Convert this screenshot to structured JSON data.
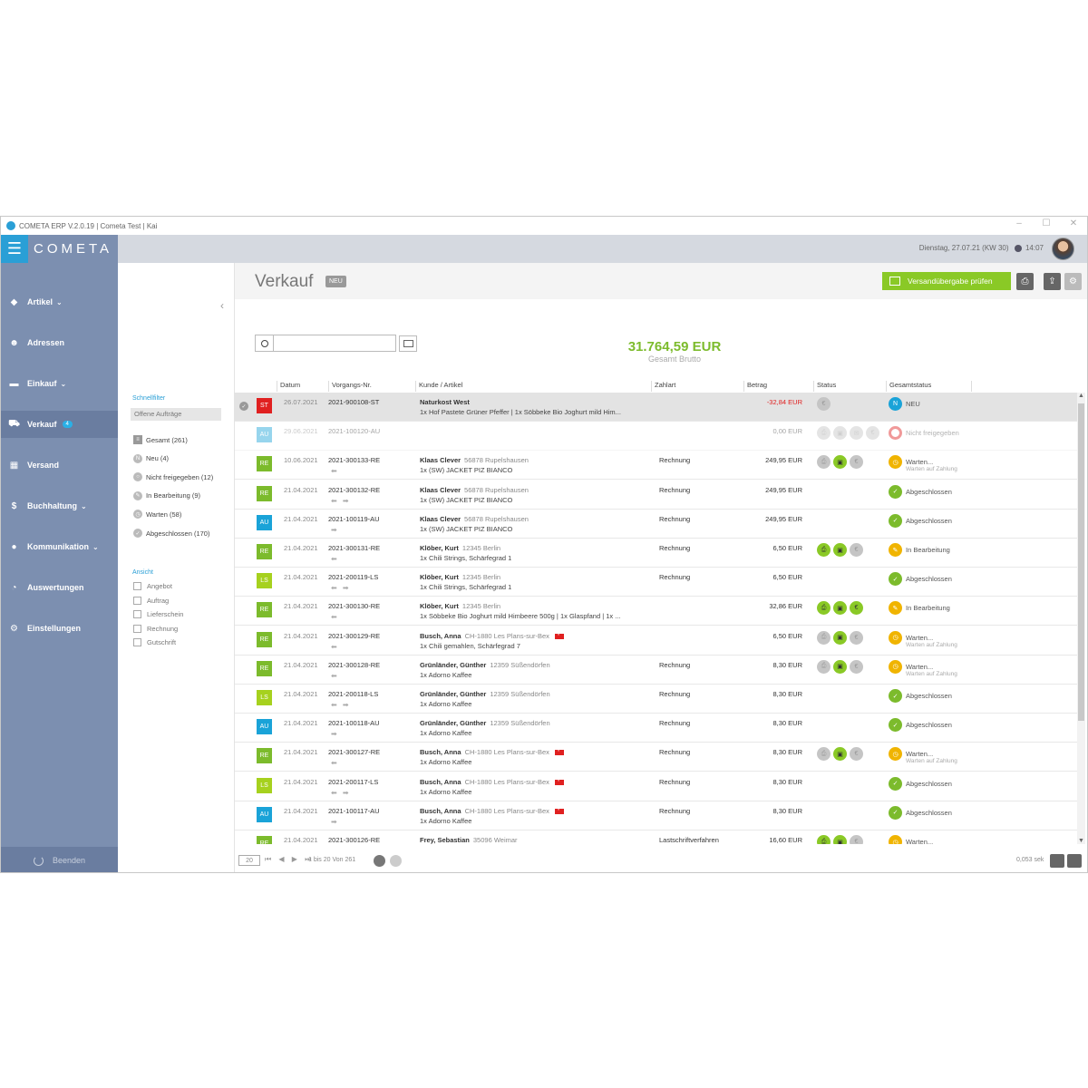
{
  "window": {
    "title": "COMETA ERP V.2.0.19 | Cometa Test | Kai",
    "controls": [
      "–",
      "☐",
      "✕"
    ]
  },
  "header": {
    "brand": "COMETA",
    "datetime": "Dienstag, 27.07.21 (KW 30)",
    "time": "14:07"
  },
  "sidebar": {
    "items": [
      {
        "label": "Artikel",
        "icon": "tag-icon",
        "chevron": true
      },
      {
        "label": "Adressen",
        "icon": "face-icon",
        "chevron": false
      },
      {
        "label": "Einkauf",
        "icon": "truck-icon",
        "chevron": true
      },
      {
        "label": "Verkauf",
        "icon": "cart-icon",
        "chevron": false,
        "badge": "4",
        "active": true
      },
      {
        "label": "Versand",
        "icon": "box-icon",
        "chevron": false
      },
      {
        "label": "Buchhaltung",
        "icon": "coin-icon",
        "chevron": true
      },
      {
        "label": "Kommunikation",
        "icon": "chat-icon",
        "chevron": true
      },
      {
        "label": "Auswertungen",
        "icon": "pie-icon",
        "chevron": false
      },
      {
        "label": "Einstellungen",
        "icon": "gear-icon",
        "chevron": false
      }
    ],
    "quit": "Beenden"
  },
  "filters": {
    "schnellfilter_title": "Schnellfilter",
    "offene": "Offene Aufträge",
    "items": [
      {
        "label": "Gesamt (261)",
        "icon": "list-icon",
        "color": "#999999"
      },
      {
        "label": "Neu (4)",
        "icon": "new-icon",
        "color": "#bbbbbb"
      },
      {
        "label": "Nicht freigegeben (12)",
        "icon": "ring-icon",
        "color": "#bbbbbb"
      },
      {
        "label": "In Bearbeitung (9)",
        "icon": "pencil-icon",
        "color": "#bbbbbb"
      },
      {
        "label": "Warten (58)",
        "icon": "clock-icon",
        "color": "#bbbbbb"
      },
      {
        "label": "Abgeschlossen (170)",
        "icon": "check-icon",
        "color": "#bbbbbb"
      }
    ],
    "ansicht_title": "Ansicht",
    "ansicht": [
      "Angebot",
      "Auftrag",
      "Lieferschein",
      "Rechnung",
      "Gutschrift"
    ]
  },
  "main": {
    "title": "Verkauf",
    "tag": "NEU",
    "versand_button": "Versandübergabe prüfen",
    "total": "31.764,59 EUR",
    "total_label": "Gesamt Brutto",
    "columns": [
      "Datum",
      "Vorgangs-Nr.",
      "Kunde / Artikel",
      "Zahlart",
      "Betrag",
      "Status",
      "Gesamtstatus"
    ]
  },
  "colors": {
    "ST": "#e02020",
    "AU": "#1aa3d8",
    "RE": "#7cbb2c",
    "LS": "#a6d11e",
    "accent": "#2a9fd6",
    "green": "#8ac926"
  },
  "rows": [
    {
      "type": "ST",
      "date": "26.07.2021",
      "num": "2021-900108-ST",
      "arrows": "",
      "name": "Naturkost West",
      "loc": "",
      "flag": false,
      "article": "1x Hof Pastete Grüner Pfeffer | 1x Söbbeke Bio Joghurt mild Him...",
      "zahlart": "",
      "betrag": "-32,84 EUR",
      "neg": true,
      "status": [
        "gr:€"
      ],
      "gs_icon": "N",
      "gs_color": "#1aa3d8",
      "gs": "NEU",
      "gs_sub": "",
      "selected": true
    },
    {
      "type": "AU",
      "date": "29.06.2021",
      "num": "2021-100120-AU",
      "arrows": "",
      "name": "",
      "loc": "",
      "flag": false,
      "article": "",
      "zahlart": "",
      "betrag": "0,00 EUR",
      "neg": false,
      "status": [
        "gr:⎙",
        "gr:▣",
        "gr:✉",
        "gr:€"
      ],
      "gs_icon": "○",
      "gs_color": "#e02020",
      "gs": "Nicht freigegeben",
      "gs_sub": "",
      "dim": true
    },
    {
      "type": "RE",
      "date": "10.06.2021",
      "num": "2021-300133-RE",
      "arrows": "⬅",
      "name": "Klaas Clever",
      "loc": "56878 Rupelshausen",
      "flag": false,
      "article": "1x (SW) JACKET PIZ BIANCO",
      "zahlart": "Rechnung",
      "betrag": "249,95 EUR",
      "neg": false,
      "status": [
        "gr:⎙",
        "g:▣",
        "gr:€"
      ],
      "gs_icon": "◷",
      "gs_color": "#f0b400",
      "gs": "Warten...",
      "gs_sub": "Warten auf Zahlung"
    },
    {
      "type": "RE",
      "date": "21.04.2021",
      "num": "2021-300132-RE",
      "arrows": "⬅ ➡",
      "name": "Klaas Clever",
      "loc": "56878 Rupelshausen",
      "flag": false,
      "article": "1x (SW) JACKET PIZ BIANCO",
      "zahlart": "Rechnung",
      "betrag": "249,95 EUR",
      "neg": false,
      "status": [],
      "gs_icon": "✓",
      "gs_color": "#7cbb2c",
      "gs": "Abgeschlossen",
      "gs_sub": ""
    },
    {
      "type": "AU",
      "date": "21.04.2021",
      "num": "2021-100119-AU",
      "arrows": "➡",
      "name": "Klaas Clever",
      "loc": "56878 Rupelshausen",
      "flag": false,
      "article": "1x (SW) JACKET PIZ BIANCO",
      "zahlart": "Rechnung",
      "betrag": "249,95 EUR",
      "neg": false,
      "status": [],
      "gs_icon": "✓",
      "gs_color": "#7cbb2c",
      "gs": "Abgeschlossen",
      "gs_sub": ""
    },
    {
      "type": "RE",
      "date": "21.04.2021",
      "num": "2021-300131-RE",
      "arrows": "⬅",
      "name": "Klöber, Kurt",
      "loc": "12345 Berlin",
      "flag": false,
      "article": "1x Chili Strings, Schärfegrad 1",
      "zahlart": "Rechnung",
      "betrag": "6,50 EUR",
      "neg": false,
      "status": [
        "g:⎙",
        "g:▣",
        "gr:€"
      ],
      "gs_icon": "✎",
      "gs_color": "#f0b400",
      "gs": "In Bearbeitung",
      "gs_sub": ""
    },
    {
      "type": "LS",
      "date": "21.04.2021",
      "num": "2021-200119-LS",
      "arrows": "⬅ ➡",
      "name": "Klöber, Kurt",
      "loc": "12345 Berlin",
      "flag": false,
      "article": "1x Chili Strings, Schärfegrad 1",
      "zahlart": "Rechnung",
      "betrag": "6,50 EUR",
      "neg": false,
      "status": [],
      "gs_icon": "✓",
      "gs_color": "#7cbb2c",
      "gs": "Abgeschlossen",
      "gs_sub": ""
    },
    {
      "type": "RE",
      "date": "21.04.2021",
      "num": "2021-300130-RE",
      "arrows": "⬅",
      "name": "Klöber, Kurt",
      "loc": "12345 Berlin",
      "flag": false,
      "article": "1x Söbbeke Bio Joghurt mild Himbeere 500g | 1x Glaspfand | 1x ...",
      "zahlart": "",
      "betrag": "32,86 EUR",
      "neg": false,
      "status": [
        "g:⎙",
        "g:▣",
        "g:€"
      ],
      "gs_icon": "✎",
      "gs_color": "#f0b400",
      "gs": "In Bearbeitung",
      "gs_sub": ""
    },
    {
      "type": "RE",
      "date": "21.04.2021",
      "num": "2021-300129-RE",
      "arrows": "⬅",
      "name": "Busch, Anna",
      "loc": "CH-1880  Les Plans-sur-Bex",
      "flag": true,
      "article": "1x Chili gemahlen, Schärfegrad 7",
      "zahlart": "",
      "betrag": "6,50 EUR",
      "neg": false,
      "status": [
        "gr:⎙",
        "g:▣",
        "gr:€"
      ],
      "gs_icon": "◷",
      "gs_color": "#f0b400",
      "gs": "Warten...",
      "gs_sub": "Warten auf Zahlung"
    },
    {
      "type": "RE",
      "date": "21.04.2021",
      "num": "2021-300128-RE",
      "arrows": "⬅",
      "name": "Grünländer, Günther",
      "loc": "12359 Süßendörfen",
      "flag": false,
      "article": "1x Adorno Kaffee",
      "zahlart": "Rechnung",
      "betrag": "8,30 EUR",
      "neg": false,
      "status": [
        "gr:⎙",
        "g:▣",
        "gr:€"
      ],
      "gs_icon": "◷",
      "gs_color": "#f0b400",
      "gs": "Warten...",
      "gs_sub": "Warten auf Zahlung"
    },
    {
      "type": "LS",
      "date": "21.04.2021",
      "num": "2021-200118-LS",
      "arrows": "⬅ ➡",
      "name": "Grünländer, Günther",
      "loc": "12359 Süßendörfen",
      "flag": false,
      "article": "1x Adorno Kaffee",
      "zahlart": "Rechnung",
      "betrag": "8,30 EUR",
      "neg": false,
      "status": [],
      "gs_icon": "✓",
      "gs_color": "#7cbb2c",
      "gs": "Abgeschlossen",
      "gs_sub": ""
    },
    {
      "type": "AU",
      "date": "21.04.2021",
      "num": "2021-100118-AU",
      "arrows": "➡",
      "name": "Grünländer, Günther",
      "loc": "12359 Süßendörfen",
      "flag": false,
      "article": "1x Adorno Kaffee",
      "zahlart": "Rechnung",
      "betrag": "8,30 EUR",
      "neg": false,
      "status": [],
      "gs_icon": "✓",
      "gs_color": "#7cbb2c",
      "gs": "Abgeschlossen",
      "gs_sub": ""
    },
    {
      "type": "RE",
      "date": "21.04.2021",
      "num": "2021-300127-RE",
      "arrows": "⬅",
      "name": "Busch, Anna",
      "loc": "CH-1880  Les Plans-sur-Bex",
      "flag": true,
      "article": "1x Adorno Kaffee",
      "zahlart": "Rechnung",
      "betrag": "8,30 EUR",
      "neg": false,
      "status": [
        "gr:⎙",
        "g:▣",
        "gr:€"
      ],
      "gs_icon": "◷",
      "gs_color": "#f0b400",
      "gs": "Warten...",
      "gs_sub": "Warten auf Zahlung"
    },
    {
      "type": "LS",
      "date": "21.04.2021",
      "num": "2021-200117-LS",
      "arrows": "⬅ ➡",
      "name": "Busch, Anna",
      "loc": "CH-1880  Les Plans-sur-Bex",
      "flag": true,
      "article": "1x Adorno Kaffee",
      "zahlart": "Rechnung",
      "betrag": "8,30 EUR",
      "neg": false,
      "status": [],
      "gs_icon": "✓",
      "gs_color": "#7cbb2c",
      "gs": "Abgeschlossen",
      "gs_sub": ""
    },
    {
      "type": "AU",
      "date": "21.04.2021",
      "num": "2021-100117-AU",
      "arrows": "➡",
      "name": "Busch, Anna",
      "loc": "CH-1880  Les Plans-sur-Bex",
      "flag": true,
      "article": "1x Adorno Kaffee",
      "zahlart": "Rechnung",
      "betrag": "8,30 EUR",
      "neg": false,
      "status": [],
      "gs_icon": "✓",
      "gs_color": "#7cbb2c",
      "gs": "Abgeschlossen",
      "gs_sub": ""
    },
    {
      "type": "RE",
      "date": "21.04.2021",
      "num": "2021-300126-RE",
      "arrows": "⬅",
      "name": "Frey, Sebastian",
      "loc": "35096 Weimar",
      "flag": false,
      "article": "",
      "zahlart": "Lastschriftverfahren",
      "betrag": "16,60 EUR",
      "neg": false,
      "status": [
        "g:⎙",
        "g:▣",
        "gr:€"
      ],
      "gs_icon": "◷",
      "gs_color": "#f0b400",
      "gs": "Warten...",
      "gs_sub": ""
    }
  ],
  "pager": {
    "page_size": "20",
    "nav": "⏮ ◀ ▶ ⏭",
    "info": "1 bis 20 Von 261",
    "seconds": "0,053 sek"
  }
}
